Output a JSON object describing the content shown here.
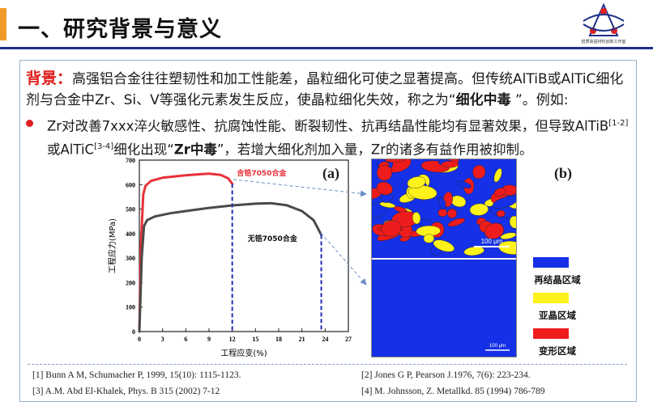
{
  "header": {
    "title": "一、研究背景与意义",
    "logo_caption": "轻质高强材料创新工作室"
  },
  "background": {
    "label": "背景：",
    "text_part1": "高强铝合金往往塑韧性和加工性能差，晶粒细化可使之显著提高。但传统AlTiB或AlTiC细化剂与合金中Zr、Si、V等强化元素发生反应，使晶粒细化失效，称之为“",
    "emphasis": "细化中毒",
    "text_part2": " ”。例如:"
  },
  "bullet": {
    "part1": "Zr对改善7xxx淬火敏感性、抗腐蚀性能、断裂韧性、抗再结晶性能均有显著效果，但导致AlTiB",
    "sup1": "[1-2]",
    "part2": "或AlTiC",
    "sup2": "[3-4]",
    "part3": "细化出现“",
    "emphasis": "Zr中毒",
    "part4": "”，若增大细化剂加入量，Zr的诸多有益作用被抑制。"
  },
  "chart_data": {
    "type": "line",
    "panel_label": "(a)",
    "xlabel": "工程应变(%)",
    "ylabel": "工程应力(MPa)",
    "xlim": [
      0,
      27
    ],
    "ylim": [
      0,
      700
    ],
    "xticks": [
      0,
      3,
      6,
      9,
      12,
      15,
      18,
      21,
      24,
      27
    ],
    "yticks": [
      0,
      100,
      200,
      300,
      400,
      500,
      600,
      700
    ],
    "series": [
      {
        "name": "含锆7050合金",
        "color": "#e8303a",
        "points": [
          [
            0,
            0
          ],
          [
            0.2,
            350
          ],
          [
            0.5,
            560
          ],
          [
            0.8,
            595
          ],
          [
            1.5,
            615
          ],
          [
            3,
            628
          ],
          [
            6,
            638
          ],
          [
            9,
            645
          ],
          [
            10.5,
            640
          ],
          [
            11.5,
            625
          ],
          [
            12,
            603
          ]
        ]
      },
      {
        "name": "无锆7050合金",
        "color": "#4a4a4a",
        "points": [
          [
            0,
            0
          ],
          [
            0.3,
            300
          ],
          [
            0.6,
            430
          ],
          [
            1,
            455
          ],
          [
            2,
            470
          ],
          [
            4,
            483
          ],
          [
            6,
            492
          ],
          [
            9,
            505
          ],
          [
            12,
            515
          ],
          [
            15,
            522
          ],
          [
            17,
            524
          ],
          [
            19,
            516
          ],
          [
            21,
            492
          ],
          [
            22.5,
            455
          ],
          [
            23.5,
            395
          ]
        ]
      }
    ],
    "markers": [
      {
        "x": 12,
        "y": 603,
        "color": "#1f2fb0"
      },
      {
        "x": 23.5,
        "y": 395,
        "color": "#1f2fb0"
      }
    ]
  },
  "panel_b": {
    "label": "(b)",
    "scale_top": "100 μm",
    "scale_bottom": "100 μm",
    "legend": [
      {
        "label": "再结晶区域",
        "color": "#1530e6"
      },
      {
        "label": "亚晶区域",
        "color": "#fff21a"
      },
      {
        "label": "变形区域",
        "color": "#ee1c1c"
      }
    ]
  },
  "references": [
    "[1] Bunn A M, Schumacher P, 1999, 15(10): 1115-1123.",
    "[2] Jones G P, Pearson J.1976, 7(6): 223-234.",
    "[3] A.M. Abd El-Khalek, Phys. B 315 (2002) 7-12",
    "[4] M. Johnsson, Z. Metallkd. 85 (1994) 786-789"
  ]
}
